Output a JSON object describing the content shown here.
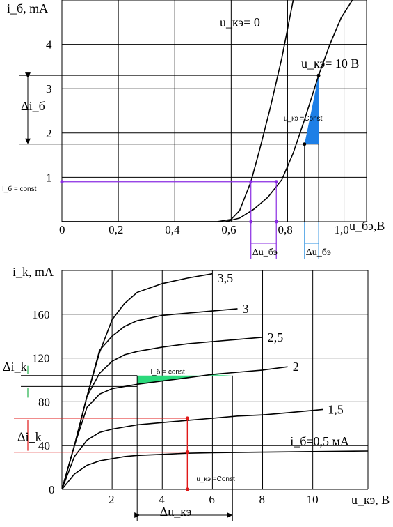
{
  "chart_data": [
    {
      "type": "line",
      "title": "",
      "xlabel": "u_бэ,B",
      "ylabel": "i_б, mA",
      "xlim": [
        0,
        1.08
      ],
      "ylim": [
        0,
        5
      ],
      "xticks": [
        "0",
        "0,2",
        "0,4",
        "0,6",
        "0,8",
        "1,0"
      ],
      "yticks": [
        "1",
        "2",
        "3",
        "4"
      ],
      "grid": true,
      "series": [
        {
          "name": "u_кэ= 0",
          "x": [
            0,
            0.55,
            0.6,
            0.63,
            0.67,
            0.7,
            0.74,
            0.78,
            0.82
          ],
          "y": [
            0,
            0,
            0.05,
            0.25,
            0.9,
            1.6,
            2.6,
            3.7,
            5.0
          ]
        },
        {
          "name": "u_кэ= 10 B",
          "x": [
            0,
            0.58,
            0.63,
            0.68,
            0.73,
            0.78,
            0.82,
            0.86,
            0.91,
            0.95,
            0.99,
            1.03
          ],
          "y": [
            0,
            0,
            0.08,
            0.28,
            0.55,
            0.95,
            1.55,
            2.3,
            3.3,
            4.0,
            4.6,
            5.0
          ]
        }
      ],
      "annotations": {
        "delta_i": "Δi_б",
        "i_const": "I_б = const",
        "u_const": "u_кэ =Const",
        "delta_u1": "Δu_бэ",
        "delta_u2": "Δu_бэ",
        "i_const_value": 0.9,
        "delta_i_range": [
          1.75,
          3.3
        ],
        "delta_u1_range": [
          0.67,
          0.76
        ],
        "delta_u2_range": [
          0.86,
          0.91
        ]
      }
    },
    {
      "type": "line",
      "title": "",
      "xlabel": "u_кэ, B",
      "ylabel": "i_k, mA",
      "xlim": [
        0,
        12.2
      ],
      "ylim": [
        0,
        200
      ],
      "xticks": [
        "2",
        "4",
        "6",
        "8",
        "10"
      ],
      "yticks": [
        "0",
        "40",
        "80",
        "120",
        "160"
      ],
      "grid": true,
      "series": [
        {
          "name": "3,5",
          "x": [
            0,
            0.5,
            1,
            1.5,
            2,
            2.5,
            3,
            4,
            5,
            6
          ],
          "y": [
            0,
            40,
            85,
            125,
            155,
            170,
            180,
            188,
            193,
            197
          ]
        },
        {
          "name": "3",
          "x": [
            0,
            0.5,
            1,
            1.5,
            2,
            2.5,
            3,
            4,
            5,
            6,
            7
          ],
          "y": [
            0,
            40,
            85,
            127,
            140,
            149,
            154,
            159,
            161,
            163,
            165
          ]
        },
        {
          "name": "2,5",
          "x": [
            0,
            0.5,
            1,
            1.5,
            2,
            2.5,
            3,
            4,
            5,
            6,
            7,
            8
          ],
          "y": [
            0,
            40,
            85,
            106,
            117,
            123,
            126,
            130,
            133,
            135,
            137,
            139
          ]
        },
        {
          "name": "2",
          "x": [
            0,
            0.5,
            1,
            1.5,
            2,
            2.5,
            3,
            4,
            5,
            6,
            7,
            8,
            9
          ],
          "y": [
            0,
            40,
            75,
            87,
            92,
            94,
            96,
            99,
            102,
            105,
            107,
            109,
            112
          ]
        },
        {
          "name": "1,5",
          "x": [
            0,
            0.5,
            1,
            1.5,
            2,
            2.5,
            3,
            4,
            5,
            6,
            7,
            8,
            9,
            10.4
          ],
          "y": [
            0,
            30,
            45,
            52,
            55,
            57,
            59,
            61,
            63,
            65,
            67,
            68,
            70,
            73
          ]
        },
        {
          "name": "i_б=0,5 мА",
          "x": [
            0,
            0.5,
            1,
            1.5,
            2,
            2.5,
            3,
            4,
            5,
            6,
            8,
            10,
            12.2
          ],
          "y": [
            0,
            14,
            22,
            26,
            28,
            30,
            31,
            32,
            33,
            33.5,
            34,
            34.5,
            35
          ]
        }
      ],
      "annotations": {
        "delta_i": "Δi_k",
        "delta_i_small": "Δi_k",
        "i_const": "I_б = const",
        "u_const": "u_кэ =Const",
        "delta_u": "Δu_кэ",
        "delta_u_range": [
          3,
          6.8
        ],
        "delta_i_range": [
          34,
          65
        ],
        "u_const_value": 5,
        "delta_i_small_range": [
          94,
          104
        ]
      }
    }
  ],
  "colors": {
    "violet": "#8a2be2",
    "blue_fill": "#1e7fe6",
    "green_fill": "#2bd97b",
    "red": "#e01818",
    "green_arrow": "#21b14a",
    "blue_arrow": "#2a8fe0"
  }
}
